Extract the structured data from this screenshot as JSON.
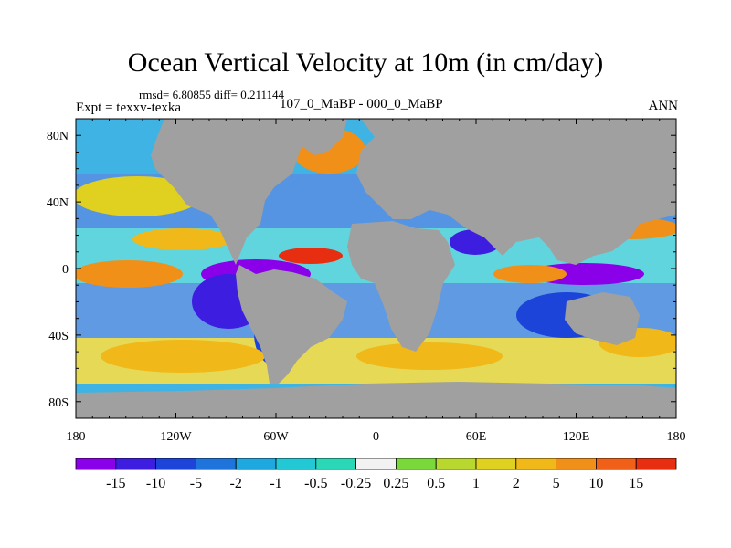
{
  "title": "Ocean Vertical Velocity at 10m (in cm/day)",
  "stats": "rmsd= 6.80855 diff= 0.211144",
  "experiment": "Expt = texxv-texka",
  "subtitle": "107_0_MaBP - 000_0_MaBP",
  "season": "ANN",
  "map": {
    "projection": "cylindrical-equidistant",
    "lon_range": [
      -180,
      180
    ],
    "lat_range": [
      -90,
      90
    ],
    "land_color": "#a0a0a0",
    "y_ticks": [
      {
        "label": "80N",
        "lat": 80
      },
      {
        "label": "40N",
        "lat": 40
      },
      {
        "label": "0",
        "lat": 0
      },
      {
        "label": "40S",
        "lat": -40
      },
      {
        "label": "80S",
        "lat": -80
      }
    ],
    "x_ticks": [
      {
        "label": "180",
        "lon": -180
      },
      {
        "label": "120W",
        "lon": -120
      },
      {
        "label": "60W",
        "lon": -60
      },
      {
        "label": "0",
        "lon": 0
      },
      {
        "label": "60E",
        "lon": 60
      },
      {
        "label": "120E",
        "lon": 120
      },
      {
        "label": "180",
        "lon": 180
      }
    ]
  },
  "colorbar": {
    "colors": [
      "#8a00e8",
      "#3d1ee0",
      "#1c44d8",
      "#1f74dc",
      "#1fa8e0",
      "#22c8d4",
      "#2ad8b8",
      "#f2f2f2",
      "#7ad83a",
      "#b8d830",
      "#e0d020",
      "#f0b818",
      "#f09018",
      "#f06018",
      "#e82e10"
    ],
    "labels": [
      "-15",
      "-10",
      "-5",
      "-2",
      "-1",
      "-0.5",
      "-0.25",
      "0.25",
      "0.5",
      "1",
      "2",
      "5",
      "10",
      "15"
    ]
  }
}
